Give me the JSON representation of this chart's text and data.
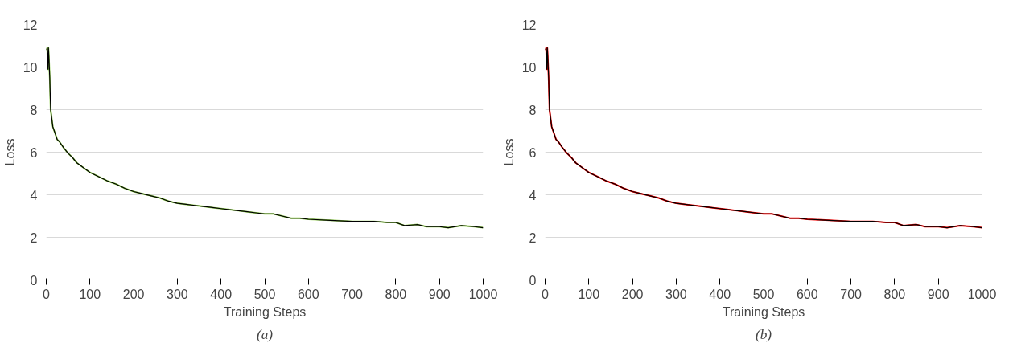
{
  "chart_data": [
    {
      "type": "line",
      "annotations": [
        "(a)"
      ],
      "xlabel": "Training Steps",
      "ylabel": "Loss",
      "xlim": [
        0,
        1000
      ],
      "xticks": [
        0,
        100,
        200,
        300,
        400,
        500,
        600,
        700,
        800,
        900,
        1000
      ],
      "ylim": [
        0,
        12
      ],
      "yticks": [
        0,
        2,
        4,
        6,
        8,
        10,
        12
      ],
      "grid": "y",
      "x": [
        0,
        2,
        4,
        5,
        6,
        8,
        10,
        15,
        20,
        25,
        30,
        40,
        50,
        60,
        70,
        80,
        90,
        100,
        120,
        140,
        160,
        180,
        200,
        220,
        240,
        260,
        280,
        300,
        320,
        340,
        360,
        380,
        400,
        420,
        440,
        460,
        480,
        500,
        520,
        540,
        560,
        580,
        600,
        650,
        700,
        750,
        780,
        800,
        820,
        850,
        870,
        900,
        920,
        950,
        980,
        1000
      ],
      "series": [
        {
          "color": "#92d050",
          "values": [
            10.8,
            10.9,
            9.9,
            10.9,
            10.5,
            9.5,
            8.0,
            7.2,
            6.9,
            6.6,
            6.5,
            6.2,
            5.95,
            5.75,
            5.5,
            5.35,
            5.2,
            5.05,
            4.85,
            4.65,
            4.5,
            4.3,
            4.15,
            4.05,
            3.95,
            3.85,
            3.7,
            3.6,
            3.55,
            3.5,
            3.45,
            3.4,
            3.35,
            3.3,
            3.25,
            3.2,
            3.15,
            3.1,
            3.1,
            3.0,
            2.9,
            2.9,
            2.85,
            2.8,
            2.75,
            2.75,
            2.7,
            2.7,
            2.55,
            2.6,
            2.5,
            2.5,
            2.45,
            2.55,
            2.5,
            2.45
          ]
        },
        {
          "color": "#000000",
          "values": [
            10.8,
            10.9,
            9.9,
            10.9,
            10.5,
            9.5,
            8.0,
            7.2,
            6.9,
            6.6,
            6.5,
            6.2,
            5.95,
            5.75,
            5.5,
            5.35,
            5.2,
            5.05,
            4.85,
            4.65,
            4.5,
            4.3,
            4.15,
            4.05,
            3.95,
            3.85,
            3.7,
            3.6,
            3.55,
            3.5,
            3.45,
            3.4,
            3.35,
            3.3,
            3.25,
            3.2,
            3.15,
            3.1,
            3.1,
            3.0,
            2.9,
            2.9,
            2.85,
            2.8,
            2.75,
            2.75,
            2.7,
            2.7,
            2.55,
            2.6,
            2.5,
            2.5,
            2.45,
            2.55,
            2.5,
            2.45
          ]
        }
      ]
    },
    {
      "type": "line",
      "annotations": [
        "(b)"
      ],
      "xlabel": "Training Steps",
      "ylabel": "Loss",
      "xlim": [
        0,
        1000
      ],
      "xticks": [
        0,
        100,
        200,
        300,
        400,
        500,
        600,
        700,
        800,
        900,
        1000
      ],
      "ylim": [
        0,
        12
      ],
      "yticks": [
        0,
        2,
        4,
        6,
        8,
        10,
        12
      ],
      "grid": "y",
      "x": [
        0,
        2,
        4,
        5,
        6,
        8,
        10,
        15,
        20,
        25,
        30,
        40,
        50,
        60,
        70,
        80,
        90,
        100,
        120,
        140,
        160,
        180,
        200,
        220,
        240,
        260,
        280,
        300,
        320,
        340,
        360,
        380,
        400,
        420,
        440,
        460,
        480,
        500,
        520,
        540,
        560,
        580,
        600,
        650,
        700,
        750,
        780,
        800,
        820,
        850,
        870,
        900,
        920,
        950,
        980,
        1000
      ],
      "series": [
        {
          "color": "#ff0000",
          "values": [
            10.8,
            10.9,
            9.9,
            10.9,
            10.5,
            9.5,
            8.0,
            7.2,
            6.9,
            6.6,
            6.5,
            6.2,
            5.95,
            5.75,
            5.5,
            5.35,
            5.2,
            5.05,
            4.85,
            4.65,
            4.5,
            4.3,
            4.15,
            4.05,
            3.95,
            3.85,
            3.7,
            3.6,
            3.55,
            3.5,
            3.45,
            3.4,
            3.35,
            3.3,
            3.25,
            3.2,
            3.15,
            3.1,
            3.1,
            3.0,
            2.9,
            2.9,
            2.85,
            2.8,
            2.75,
            2.75,
            2.7,
            2.7,
            2.55,
            2.6,
            2.5,
            2.5,
            2.45,
            2.55,
            2.5,
            2.45
          ]
        },
        {
          "color": "#000000",
          "values": [
            10.8,
            10.9,
            9.9,
            10.9,
            10.5,
            9.5,
            8.0,
            7.2,
            6.9,
            6.6,
            6.5,
            6.2,
            5.95,
            5.75,
            5.5,
            5.35,
            5.2,
            5.05,
            4.85,
            4.65,
            4.5,
            4.3,
            4.15,
            4.05,
            3.95,
            3.85,
            3.7,
            3.6,
            3.55,
            3.5,
            3.45,
            3.4,
            3.35,
            3.3,
            3.25,
            3.2,
            3.15,
            3.1,
            3.1,
            3.0,
            2.9,
            2.9,
            2.85,
            2.8,
            2.75,
            2.75,
            2.7,
            2.7,
            2.55,
            2.6,
            2.5,
            2.5,
            2.45,
            2.55,
            2.5,
            2.45
          ]
        }
      ]
    }
  ]
}
